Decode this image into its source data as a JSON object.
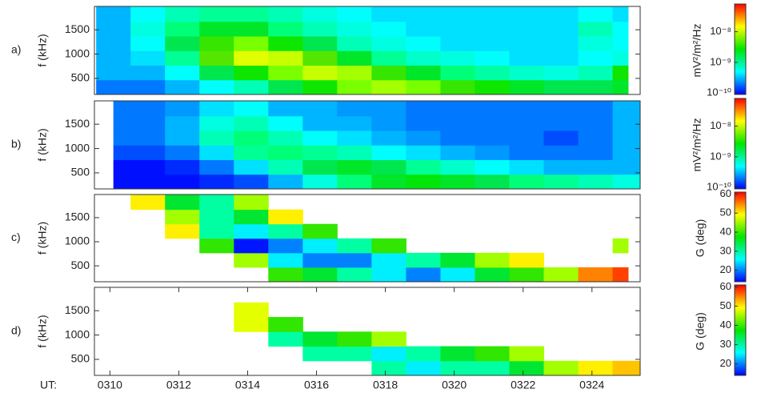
{
  "chart_data": [
    {
      "type": "heatmap",
      "label": "a)",
      "ylabel": "f (kHz)",
      "xlim": [
        9.55,
        25.4
      ],
      "ylim": [
        170,
        1980
      ],
      "yticks": [
        500,
        1000,
        1500
      ],
      "x_edges": [
        9.6,
        10.6,
        11.6,
        12.6,
        13.6,
        14.6,
        15.6,
        16.6,
        17.6,
        18.6,
        19.6,
        20.6,
        21.6,
        22.6,
        23.6,
        24.6,
        25.05
      ],
      "y_edges": [
        170,
        470,
        770,
        1070,
        1370,
        1670,
        1980
      ],
      "z": [
        [
          2e-10,
          3e-10,
          3e-10,
          3e-10,
          3e-10,
          3e-10
        ],
        [
          2e-10,
          3e-10,
          4e-10,
          5e-10,
          6e-10,
          5e-10
        ],
        [
          3e-10,
          5e-10,
          1e-09,
          1.5e-09,
          1.2e-09,
          8e-10
        ],
        [
          5e-10,
          1.5e-09,
          5e-09,
          4e-09,
          2e-09,
          1e-09
        ],
        [
          8e-10,
          3e-09,
          1.2e-08,
          6e-09,
          2e-09,
          1e-09
        ],
        [
          1.5e-09,
          6e-09,
          1e-08,
          3e-09,
          1.2e-09,
          8e-10
        ],
        [
          3e-09,
          1e-08,
          5e-09,
          1.5e-09,
          8e-10,
          6e-10
        ],
        [
          6e-09,
          8e-09,
          2e-09,
          8e-10,
          6e-10,
          5e-10
        ],
        [
          8e-09,
          4e-09,
          1e-09,
          6e-10,
          5e-10,
          4e-10
        ],
        [
          6e-09,
          2e-09,
          7e-10,
          5e-10,
          4e-10,
          4e-10
        ],
        [
          4e-09,
          1.2e-09,
          6e-10,
          4e-10,
          4e-10,
          4e-10
        ],
        [
          3e-09,
          9e-10,
          5e-10,
          4e-10,
          4e-10,
          4e-10
        ],
        [
          2e-09,
          7e-10,
          4e-10,
          4e-10,
          4e-10,
          4e-10
        ],
        [
          1.5e-09,
          6e-10,
          4e-10,
          4e-10,
          4e-10,
          4e-10
        ],
        [
          1.5e-09,
          8e-10,
          5e-10,
          6e-10,
          8e-10,
          5e-10
        ],
        [
          2e-09,
          3e-09,
          6e-10,
          5e-10,
          5e-10,
          4e-10
        ]
      ],
      "colorbar": {
        "label": "mV²/m²/Hz",
        "log": true,
        "lim": [
          9e-11,
          8e-08
        ],
        "ticks": [
          {
            "value": 1e-10,
            "label": "10⁻¹⁰"
          },
          {
            "value": 1e-09,
            "label": "10⁻⁹"
          },
          {
            "value": 1e-08,
            "label": "10⁻⁸"
          }
        ]
      }
    },
    {
      "type": "heatmap",
      "label": "b)",
      "ylabel": "f (kHz)",
      "xlim": [
        9.55,
        25.4
      ],
      "ylim": [
        170,
        1980
      ],
      "yticks": [
        500,
        1000,
        1500
      ],
      "x_edges": [
        10.1,
        10.6,
        11.6,
        12.6,
        13.6,
        14.6,
        15.6,
        16.6,
        17.6,
        18.6,
        19.6,
        20.6,
        21.6,
        22.6,
        23.6,
        24.6,
        25.4
      ],
      "y_edges": [
        170,
        470,
        770,
        1070,
        1370,
        1670,
        1980
      ],
      "z": [
        [
          1e-10,
          1e-10,
          1.5e-10,
          2e-10,
          2e-10,
          2e-10
        ],
        [
          1e-10,
          1e-10,
          1.5e-10,
          2e-10,
          2e-10,
          2e-10
        ],
        [
          1e-10,
          1.2e-10,
          2e-10,
          3e-10,
          3e-10,
          2.5e-10
        ],
        [
          1.2e-10,
          2e-10,
          4e-10,
          8e-10,
          6e-10,
          4e-10
        ],
        [
          1.5e-10,
          4e-10,
          1e-09,
          1.2e-09,
          8e-10,
          5e-10
        ],
        [
          3e-10,
          8e-10,
          1.2e-09,
          8e-10,
          5e-10,
          3e-10
        ],
        [
          6e-10,
          1.5e-09,
          1e-09,
          5e-10,
          3e-10,
          3e-10
        ],
        [
          1.2e-09,
          2e-09,
          8e-10,
          4e-10,
          3e-10,
          2.5e-10
        ],
        [
          2e-09,
          1.5e-09,
          5e-10,
          3e-10,
          2.5e-10,
          2.5e-10
        ],
        [
          2.5e-09,
          1e-09,
          4e-10,
          2.5e-10,
          2e-10,
          2e-10
        ],
        [
          2e-09,
          7e-10,
          3e-10,
          2e-10,
          2e-10,
          2e-10
        ],
        [
          1.5e-09,
          5e-10,
          2.5e-10,
          2e-10,
          2e-10,
          2e-10
        ],
        [
          1.2e-09,
          4e-10,
          2e-10,
          2e-10,
          2e-10,
          2e-10
        ],
        [
          1e-09,
          3e-10,
          2e-10,
          1.5e-10,
          2e-10,
          2e-10
        ],
        [
          8e-10,
          3e-10,
          2e-10,
          2e-10,
          2e-10,
          2e-10
        ],
        [
          6e-10,
          3e-10,
          3e-10,
          3e-10,
          3e-10,
          3e-10
        ]
      ],
      "colorbar": {
        "label": "mV²/m²/Hz",
        "log": true,
        "lim": [
          9e-11,
          8e-08
        ],
        "ticks": [
          {
            "value": 1e-10,
            "label": "10⁻¹⁰"
          },
          {
            "value": 1e-09,
            "label": "10⁻⁹"
          },
          {
            "value": 1e-08,
            "label": "10⁻⁸"
          }
        ]
      }
    },
    {
      "type": "heatmap",
      "label": "c)",
      "ylabel": "f (kHz)",
      "xlim": [
        9.55,
        25.4
      ],
      "ylim": [
        170,
        1980
      ],
      "yticks": [
        500,
        1000,
        1500
      ],
      "x_edges": [
        9.6,
        10.6,
        11.6,
        12.6,
        13.6,
        14.6,
        15.6,
        16.6,
        17.6,
        18.6,
        19.6,
        20.6,
        21.6,
        22.6,
        23.6,
        24.6,
        25.05
      ],
      "y_edges": [
        170,
        470,
        770,
        1070,
        1370,
        1670,
        1980
      ],
      "z": [
        [
          null,
          null,
          null,
          null,
          null,
          null
        ],
        [
          null,
          null,
          null,
          null,
          null,
          50
        ],
        [
          null,
          null,
          null,
          50,
          45,
          35
        ],
        [
          null,
          null,
          40,
          30,
          30,
          30
        ],
        [
          null,
          45,
          15,
          25,
          35,
          45
        ],
        [
          40,
          25,
          20,
          30,
          50,
          null
        ],
        [
          35,
          20,
          25,
          40,
          null,
          null
        ],
        [
          30,
          20,
          30,
          null,
          null,
          null
        ],
        [
          25,
          25,
          40,
          null,
          null,
          null
        ],
        [
          20,
          30,
          null,
          null,
          null,
          null
        ],
        [
          25,
          35,
          null,
          null,
          null,
          null
        ],
        [
          35,
          45,
          null,
          null,
          null,
          null
        ],
        [
          40,
          50,
          null,
          null,
          null,
          null
        ],
        [
          45,
          null,
          null,
          null,
          null,
          null
        ],
        [
          55,
          null,
          null,
          null,
          null,
          null
        ],
        [
          58,
          null,
          45,
          null,
          null,
          null
        ]
      ],
      "colorbar": {
        "label": "G (deg)",
        "log": false,
        "lim": [
          14,
          61
        ],
        "ticks": [
          20,
          30,
          40,
          50,
          60
        ]
      }
    },
    {
      "type": "heatmap",
      "label": "d)",
      "ylabel": "f (kHz)",
      "xlabel": "UT:",
      "xlim": [
        9.55,
        25.4
      ],
      "ylim": [
        170,
        1980
      ],
      "yticks": [
        500,
        1000,
        1500
      ],
      "xticks": [
        {
          "value": 10,
          "label": "0310"
        },
        {
          "value": 12,
          "label": "0312"
        },
        {
          "value": 14,
          "label": "0314"
        },
        {
          "value": 16,
          "label": "0316"
        },
        {
          "value": 18,
          "label": "0318"
        },
        {
          "value": 20,
          "label": "0320"
        },
        {
          "value": 22,
          "label": "0322"
        },
        {
          "value": 24,
          "label": "0324"
        }
      ],
      "x_edges": [
        9.6,
        10.6,
        11.6,
        12.6,
        13.6,
        14.6,
        15.6,
        16.6,
        17.6,
        18.6,
        19.6,
        20.6,
        21.6,
        22.6,
        23.6,
        24.6,
        25.4
      ],
      "y_edges": [
        170,
        470,
        770,
        1070,
        1370,
        1670,
        1980
      ],
      "z": [
        [
          null,
          null,
          null,
          null,
          null,
          null
        ],
        [
          null,
          null,
          null,
          null,
          null,
          null
        ],
        [
          null,
          null,
          null,
          null,
          null,
          null
        ],
        [
          null,
          null,
          null,
          null,
          null,
          null
        ],
        [
          null,
          null,
          null,
          48,
          48,
          null
        ],
        [
          null,
          null,
          30,
          40,
          null,
          null
        ],
        [
          null,
          30,
          35,
          null,
          null,
          null
        ],
        [
          null,
          30,
          40,
          null,
          null,
          null
        ],
        [
          30,
          25,
          45,
          null,
          null,
          null
        ],
        [
          25,
          30,
          null,
          null,
          null,
          null
        ],
        [
          30,
          35,
          null,
          null,
          null,
          null
        ],
        [
          30,
          40,
          null,
          null,
          null,
          null
        ],
        [
          35,
          45,
          null,
          null,
          null,
          null
        ],
        [
          45,
          null,
          null,
          null,
          null,
          null
        ],
        [
          50,
          null,
          null,
          null,
          null,
          null
        ],
        [
          52,
          null,
          null,
          null,
          null,
          null
        ]
      ],
      "colorbar": {
        "label": "G (deg)",
        "log": false,
        "lim": [
          14,
          61
        ],
        "ticks": [
          20,
          30,
          40,
          50,
          60
        ]
      }
    }
  ]
}
